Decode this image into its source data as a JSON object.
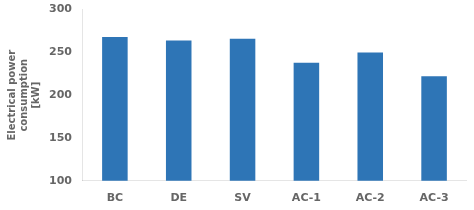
{
  "chart_data": {
    "type": "bar",
    "categories": [
      "BC",
      "DE",
      "SV",
      "AC-1",
      "AC-2",
      "AC-3"
    ],
    "values": [
      268,
      264,
      266,
      238,
      250,
      222
    ],
    "color": "#2E75B6",
    "ylabel": "Electrical power\nconsumption\n[kW]",
    "ylim": [
      100,
      300
    ],
    "yticks": [
      100,
      150,
      200,
      250,
      300
    ],
    "grid": false
  }
}
